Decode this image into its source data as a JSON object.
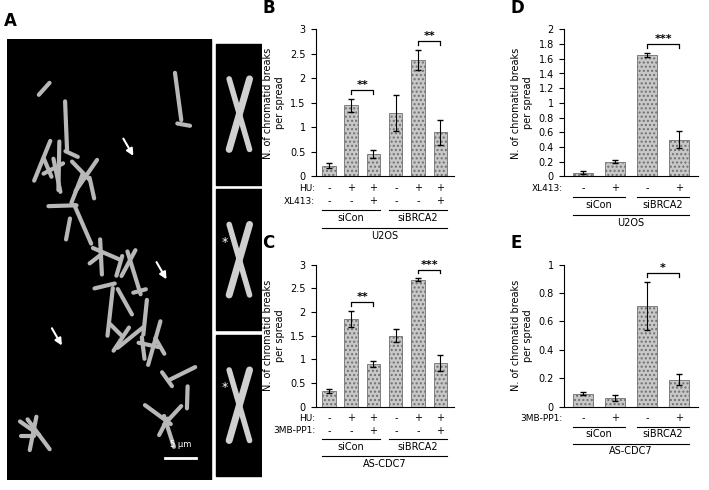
{
  "image_panel": {
    "title": "A",
    "scale_bar": "5 μm",
    "inset_marks": [
      "*",
      "*"
    ]
  },
  "chart_data": [
    {
      "type": "bar",
      "title": "B",
      "color": "#c8c8c8",
      "ylabel": "N. of chromatid breaks\nper spread",
      "xlabel": "U2OS",
      "values": [
        0.22,
        1.45,
        0.45,
        1.3,
        2.38,
        0.9
      ],
      "errors": [
        0.05,
        0.13,
        0.08,
        0.37,
        0.2,
        0.25
      ],
      "x_rows": [
        {
          "label": "HU:",
          "values": [
            "-",
            "+",
            "+",
            "-",
            "+",
            "+"
          ]
        },
        {
          "label": "XL413:",
          "values": [
            "-",
            "-",
            "+",
            "-",
            "-",
            "+"
          ]
        }
      ],
      "groups": [
        {
          "label": "siCon",
          "members": [
            0,
            1,
            2
          ]
        },
        {
          "label": "siBRCA2",
          "members": [
            3,
            4,
            5
          ]
        }
      ],
      "significance": [
        {
          "between": [
            1,
            2
          ],
          "label": "**"
        },
        {
          "between": [
            4,
            5
          ],
          "label": "**"
        }
      ],
      "ylim": [
        0,
        3
      ],
      "yticks": [
        0,
        0.5,
        1,
        1.5,
        2,
        2.5,
        3
      ]
    },
    {
      "type": "bar",
      "title": "C",
      "color": "#c8c8c8",
      "ylabel": "N. of chromatid breaks\nper spread",
      "xlabel": "AS-CDC7",
      "values": [
        0.33,
        1.85,
        0.9,
        1.5,
        2.68,
        0.93
      ],
      "errors": [
        0.04,
        0.17,
        0.06,
        0.14,
        0.03,
        0.17
      ],
      "x_rows": [
        {
          "label": "HU:",
          "values": [
            "-",
            "+",
            "+",
            "-",
            "+",
            "+"
          ]
        },
        {
          "label": "3MB-PP1:",
          "values": [
            "-",
            "-",
            "+",
            "-",
            "-",
            "+"
          ]
        }
      ],
      "groups": [
        {
          "label": "siCon",
          "members": [
            0,
            1,
            2
          ]
        },
        {
          "label": "siBRCA2",
          "members": [
            3,
            4,
            5
          ]
        }
      ],
      "significance": [
        {
          "between": [
            1,
            2
          ],
          "label": "**"
        },
        {
          "between": [
            4,
            5
          ],
          "label": "***"
        }
      ],
      "ylim": [
        0,
        3
      ],
      "yticks": [
        0,
        0.5,
        1,
        1.5,
        2,
        2.5,
        3
      ]
    },
    {
      "type": "bar",
      "title": "D",
      "color": "#c8c8c8",
      "ylabel": "N. of chromatid breaks\nper spread",
      "xlabel": "U2OS",
      "values": [
        0.05,
        0.2,
        1.65,
        0.5
      ],
      "errors": [
        0.02,
        0.02,
        0.03,
        0.12
      ],
      "x_rows": [
        {
          "label": "XL413:",
          "values": [
            "-",
            "+",
            "-",
            "+"
          ]
        }
      ],
      "groups": [
        {
          "label": "siCon",
          "members": [
            0,
            1
          ]
        },
        {
          "label": "siBRCA2",
          "members": [
            2,
            3
          ]
        }
      ],
      "significance": [
        {
          "between": [
            2,
            3
          ],
          "label": "***"
        }
      ],
      "ylim": [
        0,
        2
      ],
      "yticks": [
        0,
        0.2,
        0.4,
        0.6,
        0.8,
        1,
        1.2,
        1.4,
        1.6,
        1.8,
        2
      ]
    },
    {
      "type": "bar",
      "title": "E",
      "color": "#c8c8c8",
      "ylabel": "N. of chromatid breaks\nper spread",
      "xlabel": "AS-CDC7",
      "values": [
        0.09,
        0.06,
        0.71,
        0.19
      ],
      "errors": [
        0.01,
        0.02,
        0.17,
        0.04
      ],
      "x_rows": [
        {
          "label": "3MB-PP1:",
          "values": [
            "-",
            "+",
            "-",
            "+"
          ]
        }
      ],
      "groups": [
        {
          "label": "siCon",
          "members": [
            0,
            1
          ]
        },
        {
          "label": "siBRCA2",
          "members": [
            2,
            3
          ]
        }
      ],
      "significance": [
        {
          "between": [
            2,
            3
          ],
          "label": "*"
        }
      ],
      "ylim": [
        0,
        1
      ],
      "yticks": [
        0,
        0.2,
        0.4,
        0.6,
        0.8,
        1
      ]
    }
  ]
}
